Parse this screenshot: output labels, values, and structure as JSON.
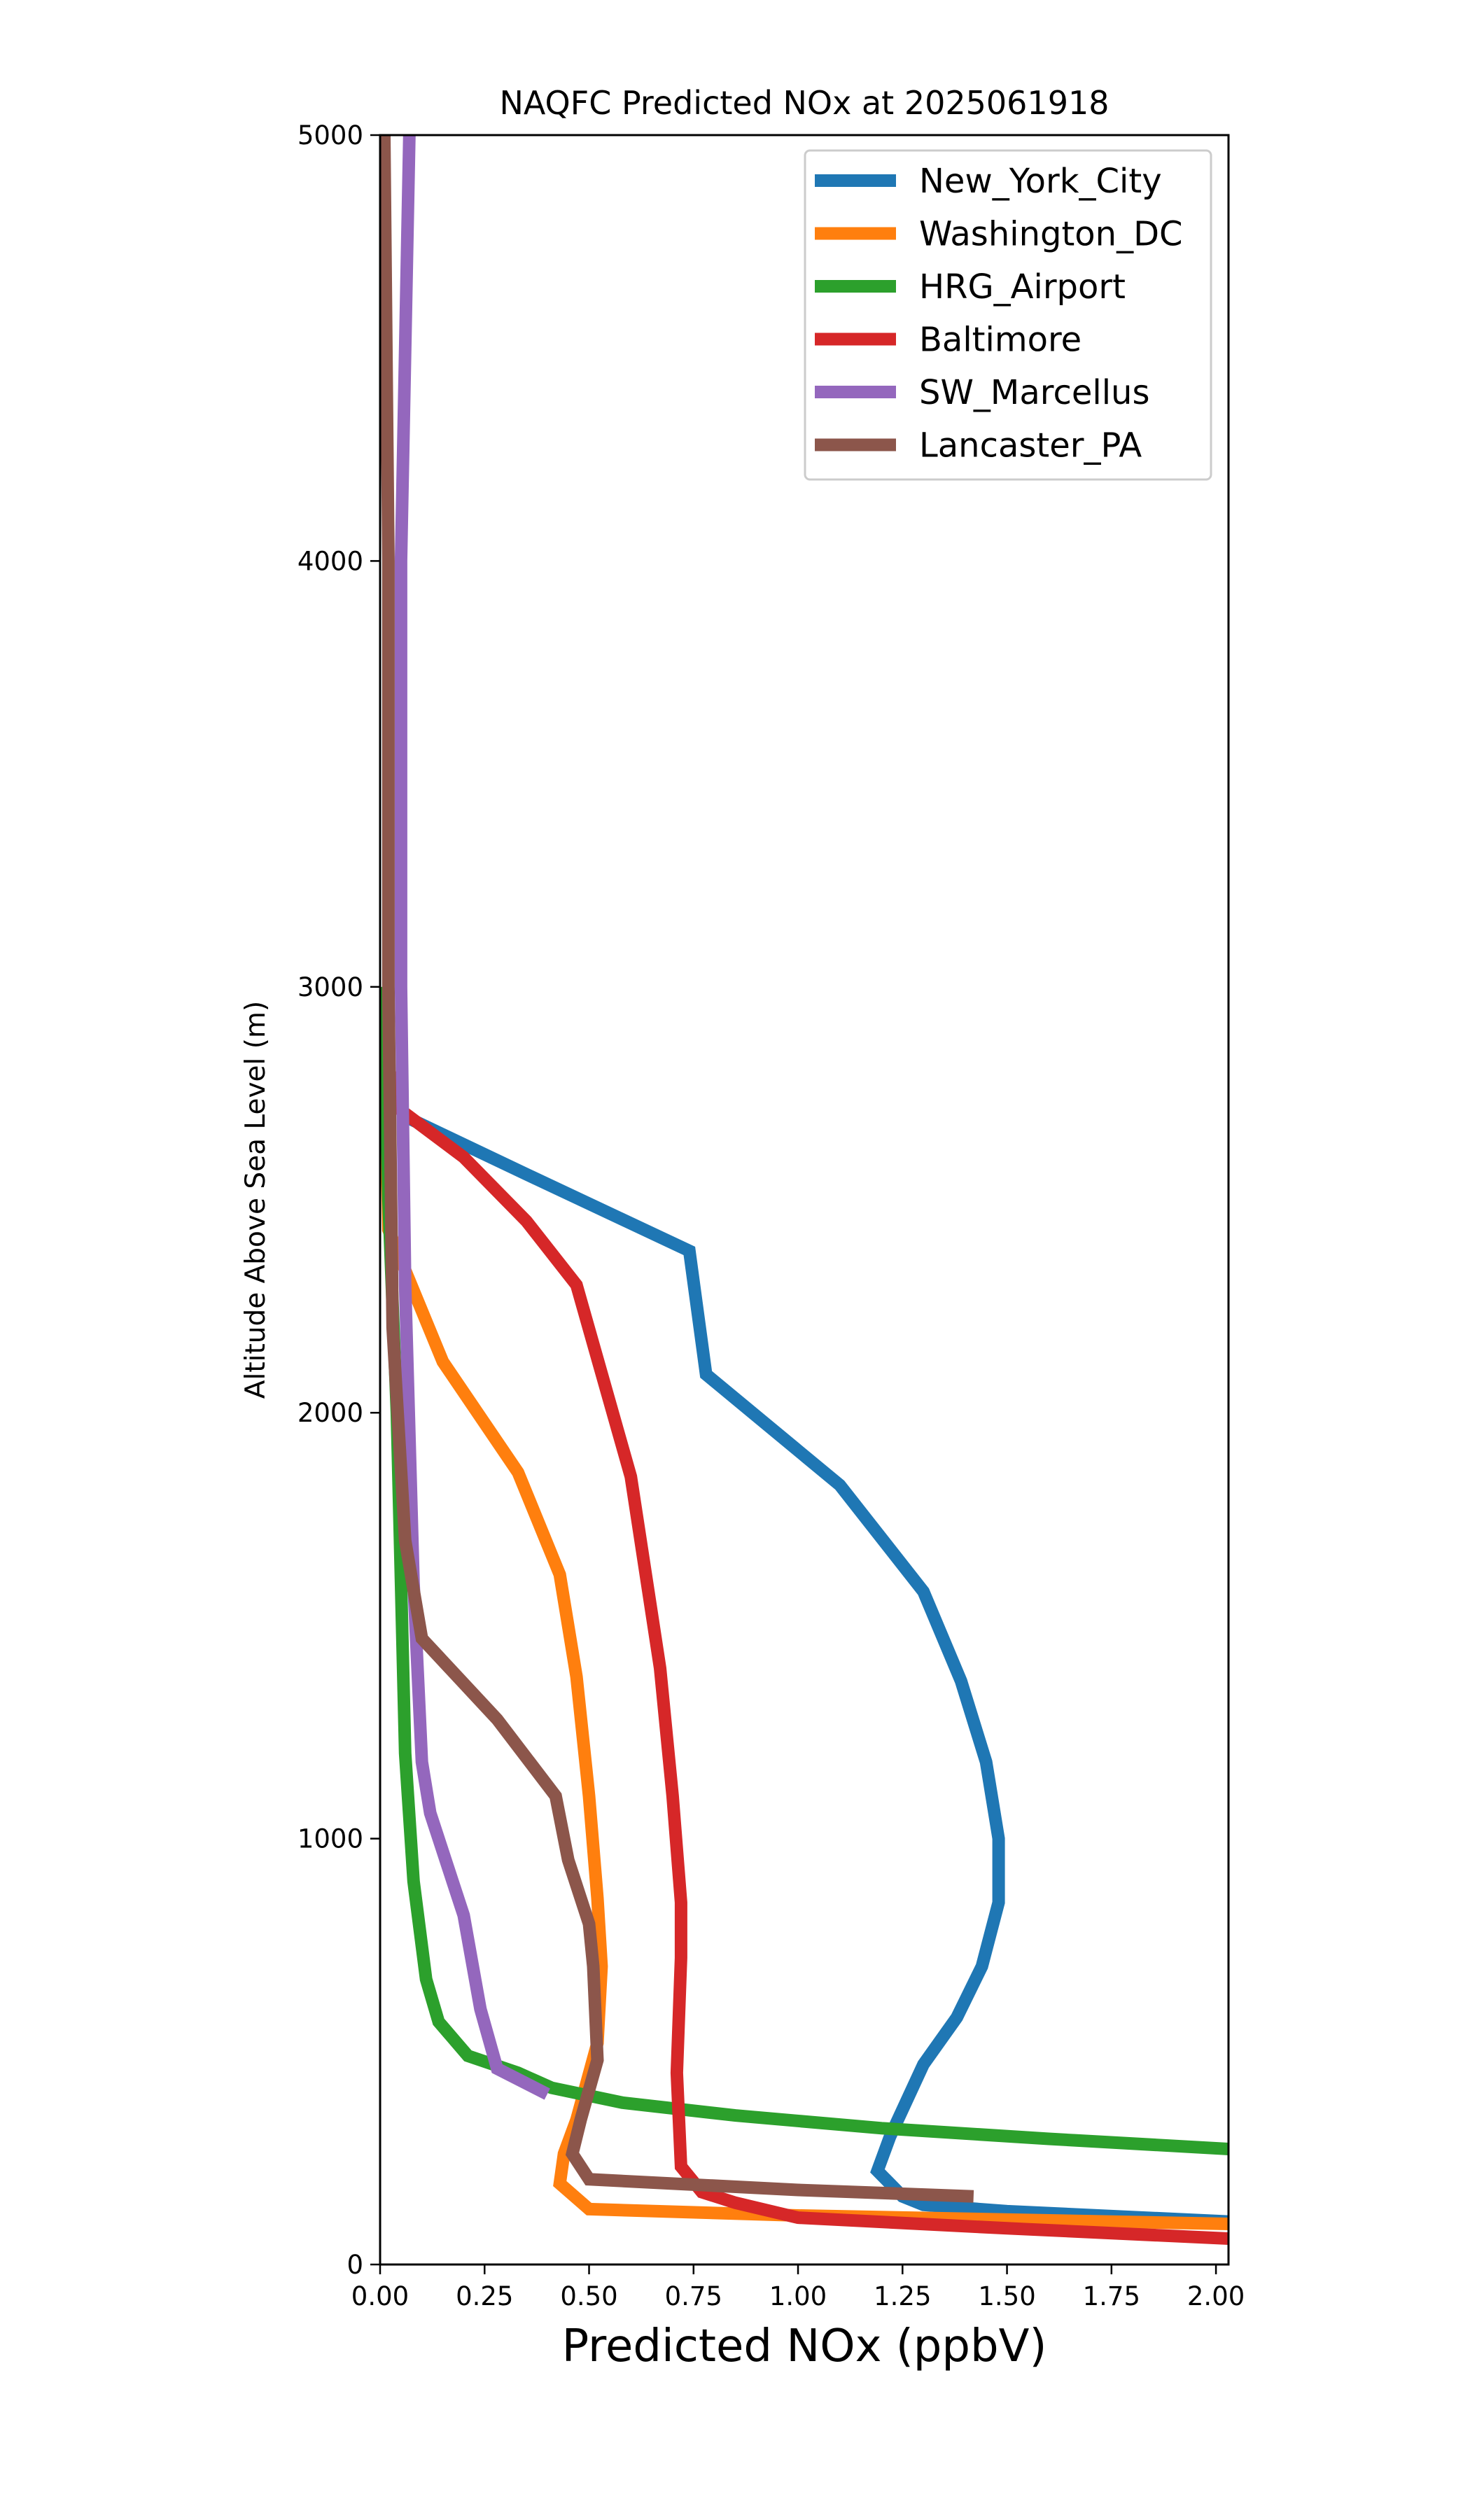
{
  "chart_data": {
    "type": "line",
    "title": "NAQFC Predicted NOx at 2025061918",
    "xlabel": "Predicted NOx (ppbV)",
    "ylabel": "Altitude Above Sea Level (m)",
    "xlim": [
      0,
      2.03
    ],
    "ylim": [
      0,
      5000
    ],
    "xticks": [
      0.0,
      0.25,
      0.5,
      0.75,
      1.0,
      1.25,
      1.5,
      1.75,
      2.0
    ],
    "xtick_labels": [
      "0.00",
      "0.25",
      "0.50",
      "0.75",
      "1.00",
      "1.25",
      "1.50",
      "1.75",
      "2.00"
    ],
    "yticks": [
      0,
      1000,
      2000,
      3000,
      4000,
      5000
    ],
    "ytick_labels": [
      "0",
      "1000",
      "2000",
      "3000",
      "4000",
      "5000"
    ],
    "grid": false,
    "legend_position": "upper-right",
    "series": [
      {
        "name": "New_York_City",
        "color": "#1f77b4",
        "points": [
          [
            2.05,
            100
          ],
          [
            1.5,
            125
          ],
          [
            1.3,
            140
          ],
          [
            1.25,
            160
          ],
          [
            1.19,
            220
          ],
          [
            1.22,
            300
          ],
          [
            1.3,
            470
          ],
          [
            1.38,
            580
          ],
          [
            1.44,
            700
          ],
          [
            1.48,
            850
          ],
          [
            1.48,
            1000
          ],
          [
            1.45,
            1180
          ],
          [
            1.39,
            1370
          ],
          [
            1.3,
            1580
          ],
          [
            1.1,
            1830
          ],
          [
            0.78,
            2090
          ],
          [
            0.74,
            2380
          ],
          [
            0.35,
            2560
          ],
          [
            0.05,
            2700
          ]
        ]
      },
      {
        "name": "Washington_DC",
        "color": "#ff7f0e",
        "points": [
          [
            2.05,
            95
          ],
          [
            1.0,
            115
          ],
          [
            0.5,
            130
          ],
          [
            0.43,
            190
          ],
          [
            0.44,
            260
          ],
          [
            0.47,
            340
          ],
          [
            0.52,
            520
          ],
          [
            0.53,
            700
          ],
          [
            0.52,
            860
          ],
          [
            0.5,
            1100
          ],
          [
            0.47,
            1380
          ],
          [
            0.43,
            1620
          ],
          [
            0.33,
            1860
          ],
          [
            0.15,
            2120
          ],
          [
            0.02,
            2430
          ],
          [
            0.01,
            2900
          ]
        ]
      },
      {
        "name": "HRG_Airport",
        "color": "#2ca02c",
        "points": [
          [
            2.05,
            270
          ],
          [
            1.6,
            295
          ],
          [
            1.2,
            320
          ],
          [
            0.85,
            350
          ],
          [
            0.58,
            380
          ],
          [
            0.41,
            415
          ],
          [
            0.33,
            450
          ],
          [
            0.21,
            490
          ],
          [
            0.14,
            570
          ],
          [
            0.11,
            670
          ],
          [
            0.08,
            900
          ],
          [
            0.06,
            1200
          ],
          [
            0.05,
            1600
          ],
          [
            0.04,
            2000
          ],
          [
            0.02,
            2500
          ],
          [
            0.01,
            3000
          ]
        ]
      },
      {
        "name": "Baltimore",
        "color": "#d62728",
        "points": [
          [
            2.05,
            60
          ],
          [
            1.5,
            85
          ],
          [
            1.0,
            110
          ],
          [
            0.85,
            145
          ],
          [
            0.77,
            170
          ],
          [
            0.72,
            230
          ],
          [
            0.71,
            450
          ],
          [
            0.72,
            720
          ],
          [
            0.72,
            850
          ],
          [
            0.7,
            1100
          ],
          [
            0.67,
            1400
          ],
          [
            0.6,
            1850
          ],
          [
            0.47,
            2300
          ],
          [
            0.35,
            2450
          ],
          [
            0.2,
            2600
          ],
          [
            0.05,
            2710
          ],
          [
            0.03,
            2800
          ]
        ]
      },
      {
        "name": "SW_Marcellus",
        "color": "#9467bd",
        "points": [
          [
            0.4,
            400
          ],
          [
            0.28,
            460
          ],
          [
            0.24,
            600
          ],
          [
            0.2,
            820
          ],
          [
            0.12,
            1060
          ],
          [
            0.1,
            1180
          ],
          [
            0.08,
            1600
          ],
          [
            0.06,
            2300
          ],
          [
            0.05,
            3000
          ],
          [
            0.05,
            4000
          ],
          [
            0.07,
            5000
          ]
        ]
      },
      {
        "name": "Lancaster_PA",
        "color": "#8c564b",
        "points": [
          [
            1.42,
            160
          ],
          [
            1.0,
            175
          ],
          [
            0.5,
            200
          ],
          [
            0.46,
            260
          ],
          [
            0.48,
            340
          ],
          [
            0.52,
            480
          ],
          [
            0.51,
            700
          ],
          [
            0.5,
            800
          ],
          [
            0.45,
            950
          ],
          [
            0.42,
            1100
          ],
          [
            0.28,
            1280
          ],
          [
            0.1,
            1470
          ],
          [
            0.06,
            1700
          ],
          [
            0.03,
            2200
          ],
          [
            0.02,
            3000
          ],
          [
            0.02,
            4000
          ],
          [
            0.01,
            5000
          ]
        ]
      }
    ]
  }
}
